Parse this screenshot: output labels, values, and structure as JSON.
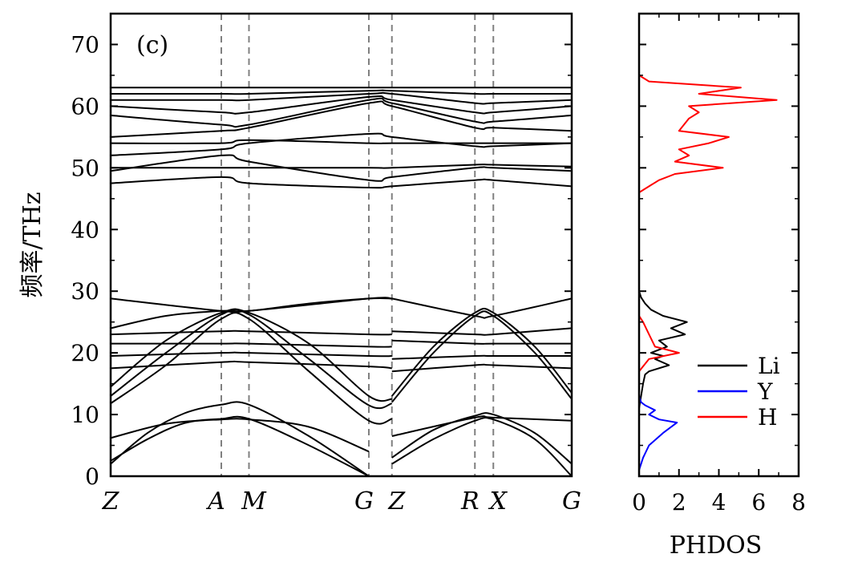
{
  "chart_data": [
    {
      "type": "line",
      "panel_label": "(c)",
      "ylabel": "频率/THz",
      "xlabel": "",
      "ylim": [
        0,
        75
      ],
      "yticks": [
        0,
        10,
        20,
        30,
        40,
        50,
        60,
        70
      ],
      "x_kpoints": [
        "Z",
        "A",
        "M",
        "G",
        "Z",
        "R",
        "X",
        "G"
      ],
      "x_kpoint_positions": [
        0,
        2.4,
        3.0,
        5.6,
        6.1,
        7.9,
        8.3,
        10.0
      ],
      "xlim": [
        0,
        10.0
      ],
      "grid": false,
      "series": [
        {
          "x": [
            0,
            0.8,
            1.6,
            2.4,
            3.0,
            4.3,
            5.6
          ],
          "y": [
            2.5,
            6.0,
            8.6,
            9.3,
            9.3,
            5.0,
            0
          ]
        },
        {
          "x": [
            0,
            0.8,
            1.6,
            2.4,
            3.0,
            4.3,
            5.6
          ],
          "y": [
            2.0,
            7.0,
            10.2,
            11.6,
            11.6,
            6.5,
            0
          ]
        },
        {
          "x": [
            0,
            1.2,
            2.4,
            3.0,
            4.3,
            5.6
          ],
          "y": [
            6.2,
            8.5,
            9.2,
            9.2,
            8.0,
            4.0
          ]
        },
        {
          "x": [
            0,
            1.2,
            2.4,
            3.0,
            4.3,
            5.6,
            6.1
          ],
          "y": [
            11.8,
            18.0,
            25.5,
            25.5,
            17.0,
            9.0,
            9.3
          ]
        },
        {
          "x": [
            0,
            1.2,
            2.4,
            3.0,
            4.3,
            5.6,
            6.1
          ],
          "y": [
            13.0,
            20.0,
            26.2,
            26.2,
            19.0,
            11.5,
            11.8
          ]
        },
        {
          "x": [
            0,
            1.2,
            2.4,
            3.0,
            4.3,
            5.6,
            6.1
          ],
          "y": [
            14.5,
            22.0,
            26.5,
            26.5,
            21.5,
            13.0,
            12.5
          ]
        },
        {
          "x": [
            0,
            2.4,
            3.0,
            5.6,
            6.1
          ],
          "y": [
            17.5,
            18.5,
            18.5,
            17.8,
            17.5
          ]
        },
        {
          "x": [
            0,
            2.4,
            3.0,
            5.6,
            6.1
          ],
          "y": [
            19.5,
            20.0,
            20.0,
            19.5,
            19.5
          ]
        },
        {
          "x": [
            0,
            2.4,
            3.0,
            5.6,
            6.1
          ],
          "y": [
            21.5,
            21.5,
            21.5,
            21.0,
            21.0
          ]
        },
        {
          "x": [
            0,
            2.4,
            3.0,
            5.6,
            6.1
          ],
          "y": [
            23.0,
            23.5,
            23.5,
            23.0,
            23.0
          ]
        },
        {
          "x": [
            0,
            1.2,
            2.4,
            3.0,
            4.3,
            5.6,
            6.1
          ],
          "y": [
            24.0,
            26.0,
            26.8,
            26.8,
            28.0,
            28.8,
            28.8
          ]
        },
        {
          "x": [
            0,
            2.4,
            3.0,
            5.6,
            6.1
          ],
          "y": [
            28.8,
            26.8,
            26.8,
            28.8,
            28.8
          ]
        },
        {
          "x": [
            6.1,
            7.0,
            7.9,
            8.3,
            9.2,
            10.0
          ],
          "y": [
            2.0,
            6.0,
            9.0,
            9.2,
            6.0,
            0
          ]
        },
        {
          "x": [
            6.1,
            7.0,
            7.9,
            8.3,
            9.2,
            10.0
          ],
          "y": [
            3.0,
            7.5,
            9.8,
            10.0,
            7.0,
            2.0
          ]
        },
        {
          "x": [
            6.1,
            7.9,
            8.3,
            10.0
          ],
          "y": [
            6.5,
            9.5,
            9.5,
            9.0
          ]
        },
        {
          "x": [
            6.1,
            7.0,
            7.9,
            8.3,
            9.2,
            10.0
          ],
          "y": [
            12.0,
            20.0,
            26.0,
            26.0,
            20.0,
            12.5
          ]
        },
        {
          "x": [
            6.1,
            7.0,
            7.9,
            8.3,
            9.2,
            10.0
          ],
          "y": [
            13.0,
            21.0,
            26.5,
            26.5,
            21.0,
            13.5
          ]
        },
        {
          "x": [
            6.1,
            7.9,
            8.3,
            10.0
          ],
          "y": [
            17.0,
            18.0,
            18.0,
            17.5
          ]
        },
        {
          "x": [
            6.1,
            7.9,
            8.3,
            10.0
          ],
          "y": [
            19.0,
            19.5,
            19.5,
            19.5
          ]
        },
        {
          "x": [
            6.1,
            7.9,
            8.3,
            10.0
          ],
          "y": [
            22.0,
            21.5,
            21.5,
            21.5
          ]
        },
        {
          "x": [
            6.1,
            7.9,
            8.3,
            10.0
          ],
          "y": [
            23.5,
            23.0,
            23.0,
            24.0
          ]
        },
        {
          "x": [
            6.1,
            7.9,
            8.3,
            10.0
          ],
          "y": [
            28.8,
            26.0,
            26.0,
            28.8
          ]
        },
        {
          "x": [
            0,
            2.4,
            3.0,
            5.6,
            6.1,
            7.9,
            8.3,
            10.0
          ],
          "y": [
            47.5,
            48.5,
            47.5,
            46.8,
            47.0,
            48.0,
            48.0,
            47.0
          ]
        },
        {
          "x": [
            0,
            2.4,
            3.0,
            5.6,
            6.1,
            7.9,
            8.3,
            10.0
          ],
          "y": [
            49.5,
            52.0,
            51.0,
            48.0,
            48.5,
            50.0,
            50.0,
            49.5
          ]
        },
        {
          "x": [
            0,
            2.4,
            3.0,
            5.6,
            6.1,
            7.9,
            8.3,
            10.0
          ],
          "y": [
            50.0,
            50.0,
            50.0,
            50.0,
            50.0,
            50.5,
            50.5,
            50.2
          ]
        },
        {
          "x": [
            0,
            2.4,
            3.0,
            5.6,
            6.1,
            7.9,
            8.3,
            10.0
          ],
          "y": [
            52.0,
            53.0,
            54.0,
            55.5,
            55.0,
            53.5,
            53.5,
            54.0
          ]
        },
        {
          "x": [
            0,
            2.4,
            3.0,
            5.6,
            6.1,
            7.9,
            8.3,
            10.0
          ],
          "y": [
            54.0,
            54.0,
            54.5,
            54.0,
            54.0,
            54.0,
            54.0,
            54.0
          ]
        },
        {
          "x": [
            0,
            2.4,
            3.0,
            5.6,
            6.1,
            7.9,
            8.3,
            10.0
          ],
          "y": [
            55.0,
            56.0,
            56.5,
            60.5,
            60.0,
            56.5,
            56.5,
            56.0
          ]
        },
        {
          "x": [
            0,
            2.4,
            3.0,
            5.6,
            6.1,
            7.9,
            8.3,
            10.0
          ],
          "y": [
            58.5,
            57.0,
            57.0,
            61.0,
            60.5,
            57.5,
            57.5,
            58.5
          ]
        },
        {
          "x": [
            0,
            2.4,
            3.0,
            5.6,
            6.1,
            7.9,
            8.3,
            10.0
          ],
          "y": [
            60.0,
            59.0,
            59.0,
            61.5,
            61.0,
            59.0,
            59.0,
            60.0
          ]
        },
        {
          "x": [
            0,
            2.4,
            3.0,
            5.6,
            6.1,
            7.9,
            8.3,
            10.0
          ],
          "y": [
            61.0,
            61.0,
            61.0,
            62.0,
            62.0,
            60.5,
            60.5,
            61.0
          ]
        },
        {
          "x": [
            0,
            2.4,
            3.0,
            5.6,
            6.1,
            7.9,
            8.3,
            10.0
          ],
          "y": [
            62.0,
            62.0,
            62.0,
            62.5,
            62.5,
            62.0,
            62.0,
            62.0
          ]
        },
        {
          "x": [
            0,
            2.4,
            3.0,
            5.6,
            6.1,
            7.9,
            8.3,
            10.0
          ],
          "y": [
            63.0,
            63.0,
            63.0,
            63.0,
            63.0,
            63.0,
            63.0,
            63.0
          ]
        }
      ]
    },
    {
      "type": "line",
      "xlabel": "PHDOS",
      "ylabel": "",
      "xlim": [
        0,
        8
      ],
      "xticks": [
        0,
        2,
        4,
        6,
        8
      ],
      "ylim": [
        0,
        75
      ],
      "legend": "bottom-right",
      "grid": false,
      "series": [
        {
          "name": "Li",
          "color": "#000000",
          "points": [
            [
              0,
              11
            ],
            [
              0.1,
              13
            ],
            [
              0.2,
              15
            ],
            [
              0.3,
              16.5
            ],
            [
              0.5,
              17
            ],
            [
              1.5,
              18
            ],
            [
              0.8,
              19
            ],
            [
              1.2,
              19.5
            ],
            [
              0.6,
              20
            ],
            [
              1.4,
              21
            ],
            [
              1.0,
              22
            ],
            [
              2.3,
              23
            ],
            [
              1.6,
              24
            ],
            [
              2.4,
              25
            ],
            [
              1.2,
              26
            ],
            [
              0.6,
              27
            ],
            [
              0.3,
              28
            ],
            [
              0.1,
              29
            ],
            [
              0,
              30
            ]
          ]
        },
        {
          "name": "Y",
          "color": "#0000ff",
          "points": [
            [
              0,
              1
            ],
            [
              0.2,
              3
            ],
            [
              0.5,
              5
            ],
            [
              1.2,
              7
            ],
            [
              1.9,
              8.7
            ],
            [
              1.0,
              9.2
            ],
            [
              0.5,
              10
            ],
            [
              0.8,
              10.7
            ],
            [
              0.3,
              11.5
            ],
            [
              0.1,
              12
            ],
            [
              0,
              13
            ]
          ]
        },
        {
          "name": "H",
          "color": "#ff0000",
          "points": [
            [
              0,
              17
            ],
            [
              0.5,
              19
            ],
            [
              2.0,
              20
            ],
            [
              0.8,
              21
            ],
            [
              0.5,
              23
            ],
            [
              0.2,
              25
            ],
            [
              0,
              26
            ],
            [
              0,
              46
            ],
            [
              0.5,
              47
            ],
            [
              1.0,
              48
            ],
            [
              1.8,
              49
            ],
            [
              4.2,
              50
            ],
            [
              1.8,
              51
            ],
            [
              2.5,
              52
            ],
            [
              2.0,
              53
            ],
            [
              3.5,
              54
            ],
            [
              4.5,
              55
            ],
            [
              2.0,
              56
            ],
            [
              2.5,
              58
            ],
            [
              3.0,
              59
            ],
            [
              2.5,
              60
            ],
            [
              6.9,
              61
            ],
            [
              3.0,
              62
            ],
            [
              5.1,
              63
            ],
            [
              0.5,
              64
            ],
            [
              0,
              65
            ]
          ]
        }
      ]
    }
  ]
}
